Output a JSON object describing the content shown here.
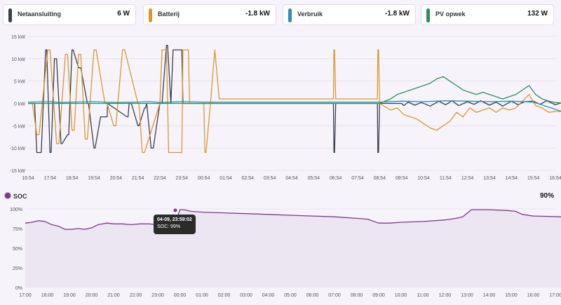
{
  "cards": [
    {
      "name": "card-netaansluiting",
      "label": "Netaansluiting",
      "value": "6 W",
      "color": "#3a3f4c"
    },
    {
      "name": "card-batterij",
      "label": "Batterij",
      "value": "-1.8 kW",
      "color": "#d59a2c"
    },
    {
      "name": "card-verbruik",
      "label": "Verbruik",
      "value": "-1.8 kW",
      "color": "#2a8fb0"
    },
    {
      "name": "card-pv-opwek",
      "label": "PV opwek",
      "value": "132 W",
      "color": "#2f8f5b"
    }
  ],
  "soc": {
    "legend": "SOC",
    "current_value": "90%",
    "tooltip": {
      "title": "04-09, 23:59:02",
      "text": "SOC: 99%"
    }
  },
  "chart_data": [
    {
      "type": "line",
      "ylabel": "",
      "ylim": [
        -15,
        15
      ],
      "yticks": [
        "15 kW",
        "10 kW",
        "5 kW",
        "0 kW",
        "-5 kW",
        "-10 kW",
        "-15 kW"
      ],
      "xticks": [
        "16:54",
        "17:54",
        "18:54",
        "19:54",
        "20:54",
        "21:54",
        "22:54",
        "23:54",
        "00:54",
        "01:54",
        "02:54",
        "03:54",
        "04:54",
        "05:54",
        "06:54",
        "07:54",
        "08:54",
        "09:54",
        "10:54",
        "11:54",
        "12:54",
        "13:54",
        "14:54",
        "15:54",
        "16:54"
      ],
      "grid": true,
      "series": [
        {
          "name": "Netaansluiting",
          "color": "#3a3f4c",
          "t": [
            0,
            0.3,
            0.4,
            0.6,
            0.8,
            0.85,
            1.0,
            1.05,
            1.2,
            1.3,
            1.5,
            1.55,
            1.8,
            1.85,
            2.0,
            2.05,
            2.3,
            2.4,
            2.7,
            2.75,
            3.0,
            3.05,
            3.3,
            3.6,
            3.62,
            4.5,
            4.55,
            4.6,
            4.7,
            5.0,
            5.05,
            5.3,
            5.35,
            5.4,
            5.6,
            5.7,
            6.0,
            6.1,
            6.3,
            6.35,
            6.5,
            6.6,
            7.0,
            7.05,
            7.2,
            7.3,
            7.35,
            7.6,
            7.65,
            7.8,
            7.85,
            8.2,
            13.9,
            13.92,
            13.95,
            14.0,
            15.9,
            15.92,
            15.95,
            16.0,
            17.0,
            17.1,
            17.3,
            17.6,
            17.9,
            18.3,
            18.7,
            19.0,
            19.3,
            19.6,
            20.0,
            20.3,
            20.6,
            21.0,
            21.3,
            21.6,
            22.0,
            22.3,
            22.6,
            23.0,
            23.3,
            23.6,
            24.0,
            24.3
          ],
          "v": [
            0,
            0,
            -11,
            -11,
            12,
            12,
            -11,
            -11,
            10,
            10,
            -9,
            -9,
            -7,
            -7,
            12,
            12,
            8,
            8,
            0,
            0,
            -10,
            -10,
            -3,
            -3,
            0,
            -3,
            -3,
            0,
            0,
            -5,
            -5,
            -1,
            -1,
            0,
            -10,
            -10,
            0,
            0,
            13,
            13,
            0,
            12,
            12,
            0,
            0,
            0,
            0,
            0,
            0,
            0,
            0,
            0,
            0,
            -11,
            -11,
            0,
            0,
            -11,
            -11,
            0,
            0,
            -0.5,
            0.3,
            -0.4,
            0.2,
            -0.6,
            0.5,
            -0.3,
            0.6,
            -0.5,
            0.4,
            -0.2,
            0.6,
            -0.4,
            0.3,
            -0.6,
            0.5,
            -0.3,
            0.4,
            0.5,
            -0.2,
            0.6,
            -0.3,
            0.2
          ]
        },
        {
          "name": "Batterij",
          "color": "#d59a2c",
          "t": [
            0,
            0.2,
            0.4,
            0.5,
            0.9,
            1.0,
            1.3,
            1.4,
            1.7,
            1.8,
            2.0,
            2.1,
            2.3,
            2.4,
            2.6,
            2.7,
            3.0,
            3.1,
            3.5,
            3.6,
            3.9,
            4.0,
            4.3,
            4.4,
            5.0,
            5.05,
            5.2,
            5.3,
            6.0,
            6.1,
            6.3,
            6.4,
            7.0,
            7.05,
            7.3,
            7.35,
            7.9,
            8.0,
            8.05,
            8.1,
            8.3,
            8.5,
            8.7,
            13.9,
            13.92,
            13.95,
            14.0,
            15.9,
            15.92,
            15.95,
            16.0,
            16.5,
            16.8,
            17.1,
            17.4,
            17.7,
            18.0,
            18.3,
            18.6,
            18.9,
            19.2,
            19.5,
            19.8,
            20.1,
            20.4,
            20.7,
            21.0,
            21.3,
            21.6,
            21.9,
            22.2,
            22.5,
            22.8,
            23.1,
            23.4,
            23.7,
            24.0,
            24.3
          ],
          "v": [
            0,
            0,
            -7,
            -7,
            12,
            12,
            -9,
            -9,
            11,
            11,
            -6,
            -6,
            11,
            11,
            -8,
            -8,
            12,
            12,
            0,
            0,
            -5,
            -5,
            12,
            12,
            0,
            0,
            -11,
            -11,
            0,
            12,
            12,
            -11,
            -11,
            12,
            12,
            0,
            0,
            0,
            -11,
            -11,
            0,
            12,
            1,
            1,
            12,
            12,
            1,
            1,
            12,
            12,
            0,
            -1.5,
            -1,
            -2.5,
            -3,
            -3.5,
            -4.5,
            -5.5,
            -6,
            -5,
            -4,
            -2,
            -3,
            -1,
            -2,
            -1.5,
            -1,
            -2,
            -1,
            -1.5,
            -1,
            0.5,
            2,
            -0.5,
            -1,
            -2,
            -1.8,
            -1.8
          ]
        },
        {
          "name": "Verbruik",
          "color": "#2a8fb0",
          "t": [
            0,
            1.0,
            1.5,
            2.0,
            3.0,
            3.5,
            4.0,
            5.0,
            5.5,
            6.0,
            7.0,
            8.0,
            9.0,
            10.0,
            11.0,
            12.0,
            13.0,
            14.0,
            15.0,
            16.0,
            17.0,
            18.0,
            19.0,
            20.0,
            21.0,
            22.0,
            23.0,
            24.3
          ],
          "v": [
            0.3,
            0.4,
            0.2,
            0.3,
            0.4,
            0.3,
            0.2,
            0.3,
            0.4,
            0.2,
            0.4,
            0.3,
            0.3,
            0.3,
            0.3,
            0.3,
            0.3,
            0.3,
            0.3,
            0.3,
            0.5,
            0.4,
            0.6,
            0.5,
            0.4,
            0.5,
            0.3,
            -1.8
          ]
        },
        {
          "name": "PV opwek",
          "color": "#2f8f5b",
          "t": [
            0,
            16.0,
            16.5,
            16.8,
            17.1,
            17.4,
            17.7,
            18.0,
            18.3,
            18.6,
            18.9,
            19.2,
            19.5,
            19.8,
            20.1,
            20.4,
            20.7,
            21.0,
            21.3,
            21.6,
            21.9,
            22.2,
            22.5,
            22.8,
            23.1,
            23.4,
            23.7,
            24.0,
            24.3
          ],
          "v": [
            0,
            0,
            1,
            2,
            2.5,
            3,
            3.5,
            4,
            4.5,
            5.5,
            6,
            5,
            4,
            3,
            2.5,
            2,
            2.5,
            2,
            1.5,
            1,
            1.5,
            2,
            3,
            4,
            2,
            1,
            0.5,
            0.2,
            0.1
          ]
        }
      ]
    },
    {
      "type": "area",
      "ylabel": "",
      "ylim": [
        0,
        100
      ],
      "yticks": [
        "100%",
        "75%",
        "50%",
        "25%",
        "0%"
      ],
      "xticks": [
        "17:00",
        "18:00",
        "19:00",
        "20:00",
        "21:00",
        "22:00",
        "23:00",
        "00:00",
        "01:00",
        "02:00",
        "03:00",
        "04:00",
        "05:00",
        "06:00",
        "07:00",
        "08:00",
        "09:00",
        "10:00",
        "11:00",
        "12:00",
        "13:00",
        "14:00",
        "15:00",
        "16:00",
        "17:00"
      ],
      "grid": true,
      "series": [
        {
          "name": "SOC",
          "color": "#7b3b8a",
          "t": [
            0,
            0.3,
            0.6,
            0.9,
            1.2,
            1.5,
            1.8,
            2.1,
            2.4,
            2.7,
            3.0,
            3.3,
            3.7,
            4.0,
            4.4,
            4.8,
            5.2,
            5.6,
            6.0,
            6.4,
            6.8,
            7.0,
            7.2,
            7.5,
            8.0,
            9.0,
            10.0,
            11.0,
            12.0,
            13.0,
            14.0,
            15.0,
            15.5,
            16.0,
            16.5,
            17.0,
            18.0,
            19.0,
            19.5,
            19.8,
            20.2,
            21.0,
            21.8,
            22.2,
            22.5,
            23.0,
            24.3
          ],
          "v": [
            82,
            83,
            85,
            84,
            80,
            78,
            74,
            74,
            75,
            74,
            76,
            80,
            82,
            81,
            81,
            80,
            81,
            81,
            80,
            81,
            81,
            99,
            99,
            97,
            96,
            95,
            94,
            93,
            92,
            91,
            90,
            88,
            87,
            82,
            82,
            83,
            84,
            86,
            88,
            90,
            99,
            99,
            98,
            97,
            93,
            91,
            90
          ]
        }
      ]
    }
  ]
}
